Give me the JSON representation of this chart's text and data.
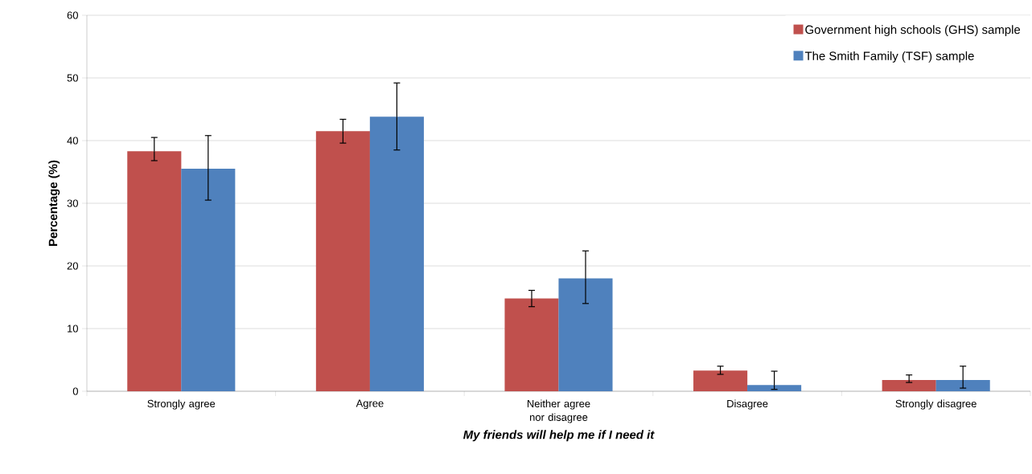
{
  "chart_data": {
    "type": "bar",
    "xlabel": "My friends will  help me if I need it",
    "ylabel": "Percentage (%)",
    "categories": [
      "Strongly agree",
      "Agree",
      "Neither agree nor disagree",
      "Disagree",
      "Strongly disagree"
    ],
    "series": [
      {
        "name": "Government high schools (GHS) sample",
        "color": "#c0504d",
        "values": [
          38.3,
          41.5,
          14.8,
          3.3,
          1.8
        ],
        "errors": [
          [
            36.8,
            40.5
          ],
          [
            39.6,
            43.4
          ],
          [
            13.5,
            16.1
          ],
          [
            2.7,
            4.0
          ],
          [
            1.4,
            2.6
          ]
        ]
      },
      {
        "name": "The Smith Family (TSF) sample",
        "color": "#4f81bd",
        "values": [
          35.5,
          43.8,
          18.0,
          1.0,
          1.8
        ],
        "errors": [
          [
            30.5,
            40.8
          ],
          [
            38.5,
            49.2
          ],
          [
            14.0,
            22.4
          ],
          [
            0.3,
            3.2
          ],
          [
            0.5,
            4.0
          ]
        ]
      }
    ],
    "ylim": [
      0,
      60
    ],
    "yticks": [
      0,
      10,
      20,
      30,
      40,
      50,
      60
    ],
    "grid": "y",
    "legend": "top right"
  }
}
